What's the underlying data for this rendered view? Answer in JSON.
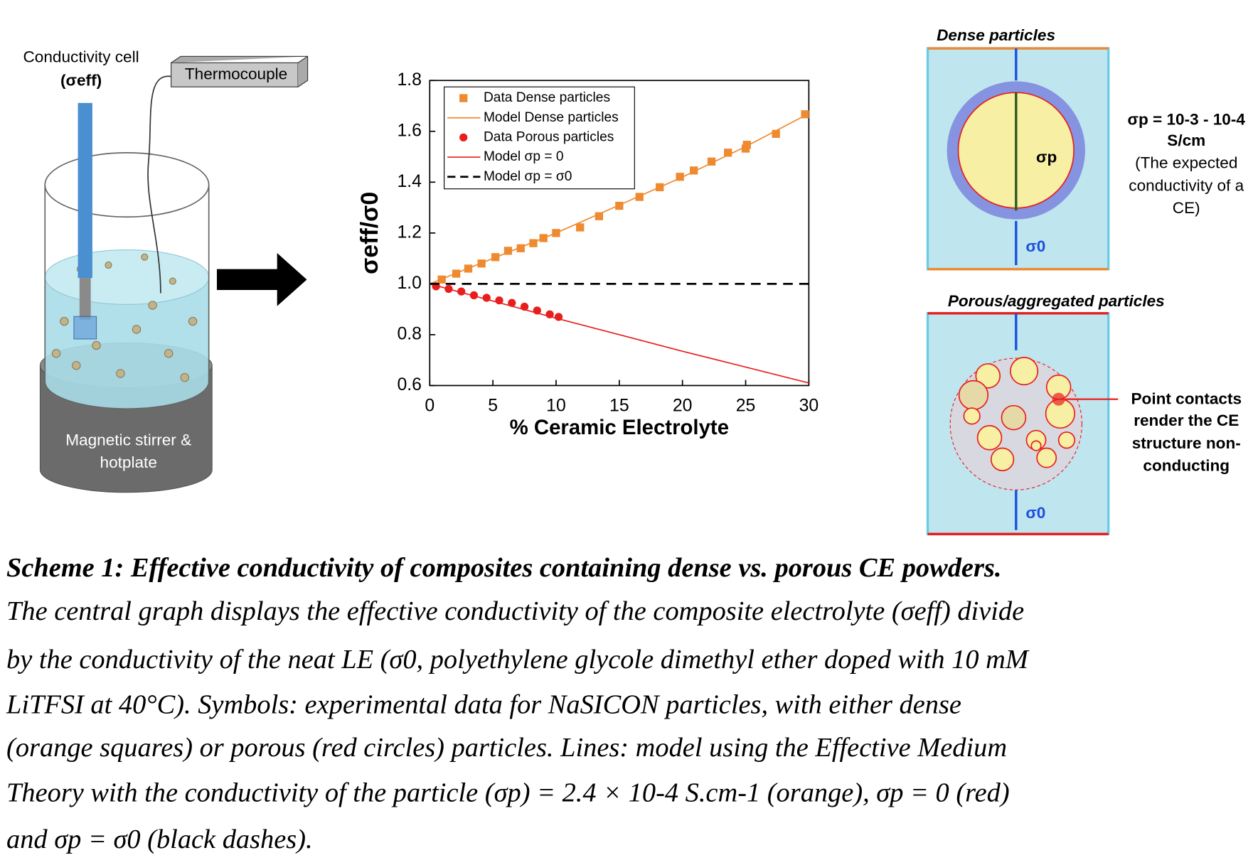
{
  "chart_data": {
    "type": "scatter",
    "xlabel": "% Ceramic Electrolyte",
    "ylabel": "σeff/σ0",
    "xlim": [
      0,
      30
    ],
    "xticks": [
      0,
      5,
      10,
      15,
      20,
      25,
      30
    ],
    "ylim": [
      0.6,
      1.8
    ],
    "yticks": [
      0.6,
      0.8,
      {
        "value": 1,
        "label": "1.0"
      },
      1.2,
      1.4,
      1.6,
      1.8
    ],
    "legend": "upper left",
    "series": [
      {
        "name": "Data Dense particles",
        "color": "#ee8a2f",
        "marker": "square",
        "x": [
          0.95,
          2.1,
          3.05,
          4.1,
          5.2,
          6.2,
          7.2,
          8.2,
          9.0,
          10.0,
          11.9,
          13.4,
          15.0,
          16.6,
          18.2,
          19.8,
          20.9,
          22.3,
          23.6,
          25.0,
          25.1,
          27.4,
          29.7
        ],
        "values": [
          1.017,
          1.04,
          1.06,
          1.08,
          1.105,
          1.13,
          1.14,
          1.16,
          1.18,
          1.2,
          1.222,
          1.266,
          1.307,
          1.342,
          1.38,
          1.421,
          1.446,
          1.481,
          1.516,
          1.532,
          1.547,
          1.59,
          1.667
        ]
      },
      {
        "name": "Model Dense particles",
        "color": "#ee8a2f",
        "line": "solid",
        "x": [
          0,
          5,
          10,
          15,
          20,
          25,
          30
        ],
        "values": [
          1.0,
          1.1,
          1.2,
          1.31,
          1.42,
          1.54,
          1.67
        ]
      },
      {
        "name": "Data Porous particles",
        "color": "#e81e1e",
        "marker": "circle",
        "x": [
          0.5,
          1.5,
          2.5,
          3.5,
          4.5,
          5.5,
          6.5,
          7.5,
          8.5,
          9.5,
          10.2
        ],
        "values": [
          0.99,
          0.98,
          0.97,
          0.955,
          0.945,
          0.935,
          0.925,
          0.91,
          0.895,
          0.88,
          0.87
        ]
      },
      {
        "name": "Model σp = 0",
        "color": "#e81e1e",
        "line": "solid",
        "x": [
          0,
          10,
          20,
          30
        ],
        "values": [
          1.0,
          0.865,
          0.735,
          0.61
        ]
      },
      {
        "name": "Model σp = σ0",
        "color": "#000000",
        "line": "dashed",
        "x": [
          0,
          30
        ],
        "values": [
          1,
          1
        ]
      }
    ]
  },
  "left_diagram": {
    "cell_label": "Conductivity cell",
    "cell_symbol": "(σeff)",
    "thermocouple": "Thermocouple",
    "stirrer_line1": "Magnetic stirrer &",
    "stirrer_line2": "hotplate"
  },
  "right_diagram": {
    "dense_title": "Dense particles",
    "particle_symbol": "σp",
    "dense_sigma0": "σ0",
    "note": [
      "σp = 10-3 - 10-4",
      "S/cm",
      "(The expected",
      "conductivity of a",
      "CE)"
    ],
    "porous_title": "Porous/aggregated particles",
    "porous_sigma0": "σ0",
    "contacts": [
      "Point contacts",
      "render the CE",
      "structure non-",
      "conducting"
    ]
  },
  "caption": {
    "title": "Scheme 1: Effective conductivity of composites containing dense vs. porous CE powders.",
    "lines": [
      "The central graph displays the effective conductivity of the composite electrolyte (σeff) divide",
      "by the conductivity of the neat LE (σ0, polyethylene glycole dimethyl ether doped with 10 mM",
      "LiTFSI at 40°C). Symbols: experimental data for NaSICON particles, with either dense",
      "(orange squares) or porous (red circles) particles. Lines: model using the Effective Medium",
      "Theory with the conductivity of the particle (σp) = 2.4 × 10-4 S.cm-1 (orange), σp = 0 (red)",
      "and σp = σ0 (black dashes)."
    ]
  }
}
